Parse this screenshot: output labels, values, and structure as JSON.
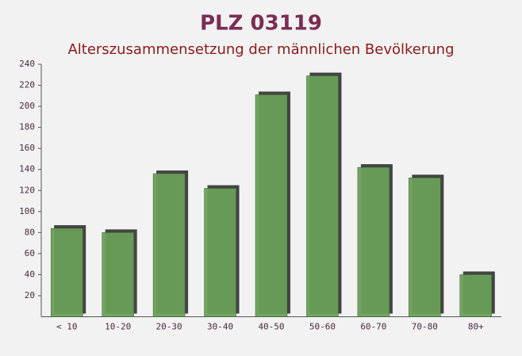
{
  "chart_data": {
    "type": "bar",
    "title": "PLZ 03119",
    "subtitle": "Alterszusammensetzung der männlichen Bevölkerung",
    "categories": [
      "< 10",
      "10-20",
      "20-30",
      "30-40",
      "40-50",
      "50-60",
      "60-70",
      "70-80",
      "80+"
    ],
    "values": [
      84,
      80,
      136,
      122,
      211,
      229,
      142,
      132,
      40
    ],
    "color": "#6a9f58",
    "ylim": [
      0,
      240
    ],
    "yticks": [
      20,
      40,
      60,
      80,
      100,
      120,
      140,
      160,
      180,
      200,
      220,
      240
    ]
  }
}
